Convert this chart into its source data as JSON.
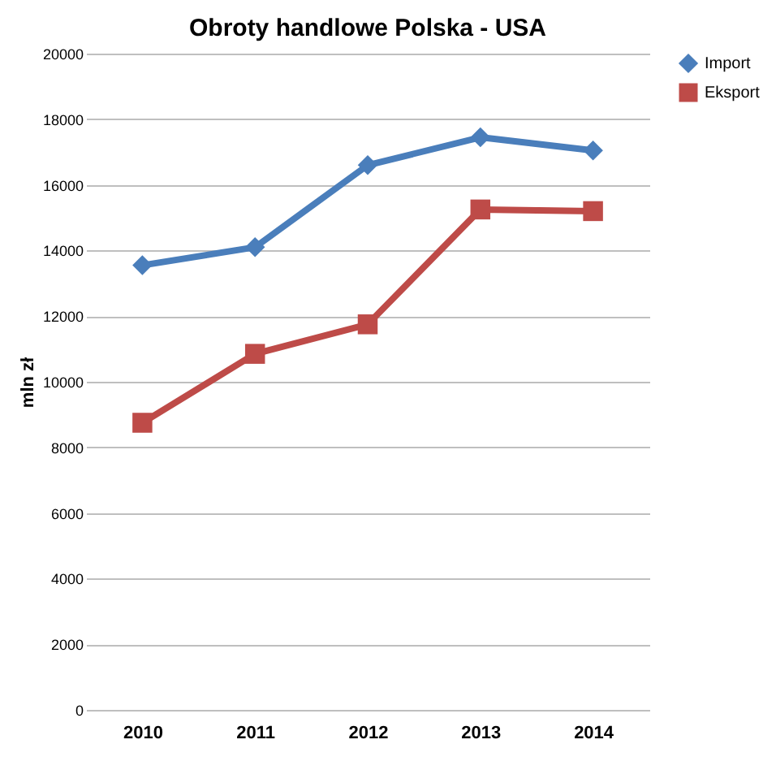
{
  "chart_data": {
    "type": "line",
    "title": "Obroty handlowe Polska - USA",
    "ylabel": "mln zł",
    "categories": [
      "2010",
      "2011",
      "2012",
      "2013",
      "2014"
    ],
    "series": [
      {
        "name": "Import",
        "color": "#4a7ebb",
        "marker": "diamond",
        "values": [
          13550,
          14100,
          16600,
          17450,
          17050
        ]
      },
      {
        "name": "Eksport",
        "color": "#be4b48",
        "marker": "square",
        "values": [
          8750,
          10850,
          11750,
          15250,
          15200
        ]
      }
    ],
    "ylim": [
      0,
      20000
    ],
    "yticks": [
      0,
      2000,
      4000,
      6000,
      8000,
      10000,
      12000,
      14000,
      16000,
      18000,
      20000
    ],
    "grid": "y",
    "legend": "right",
    "line_style": "solid"
  }
}
